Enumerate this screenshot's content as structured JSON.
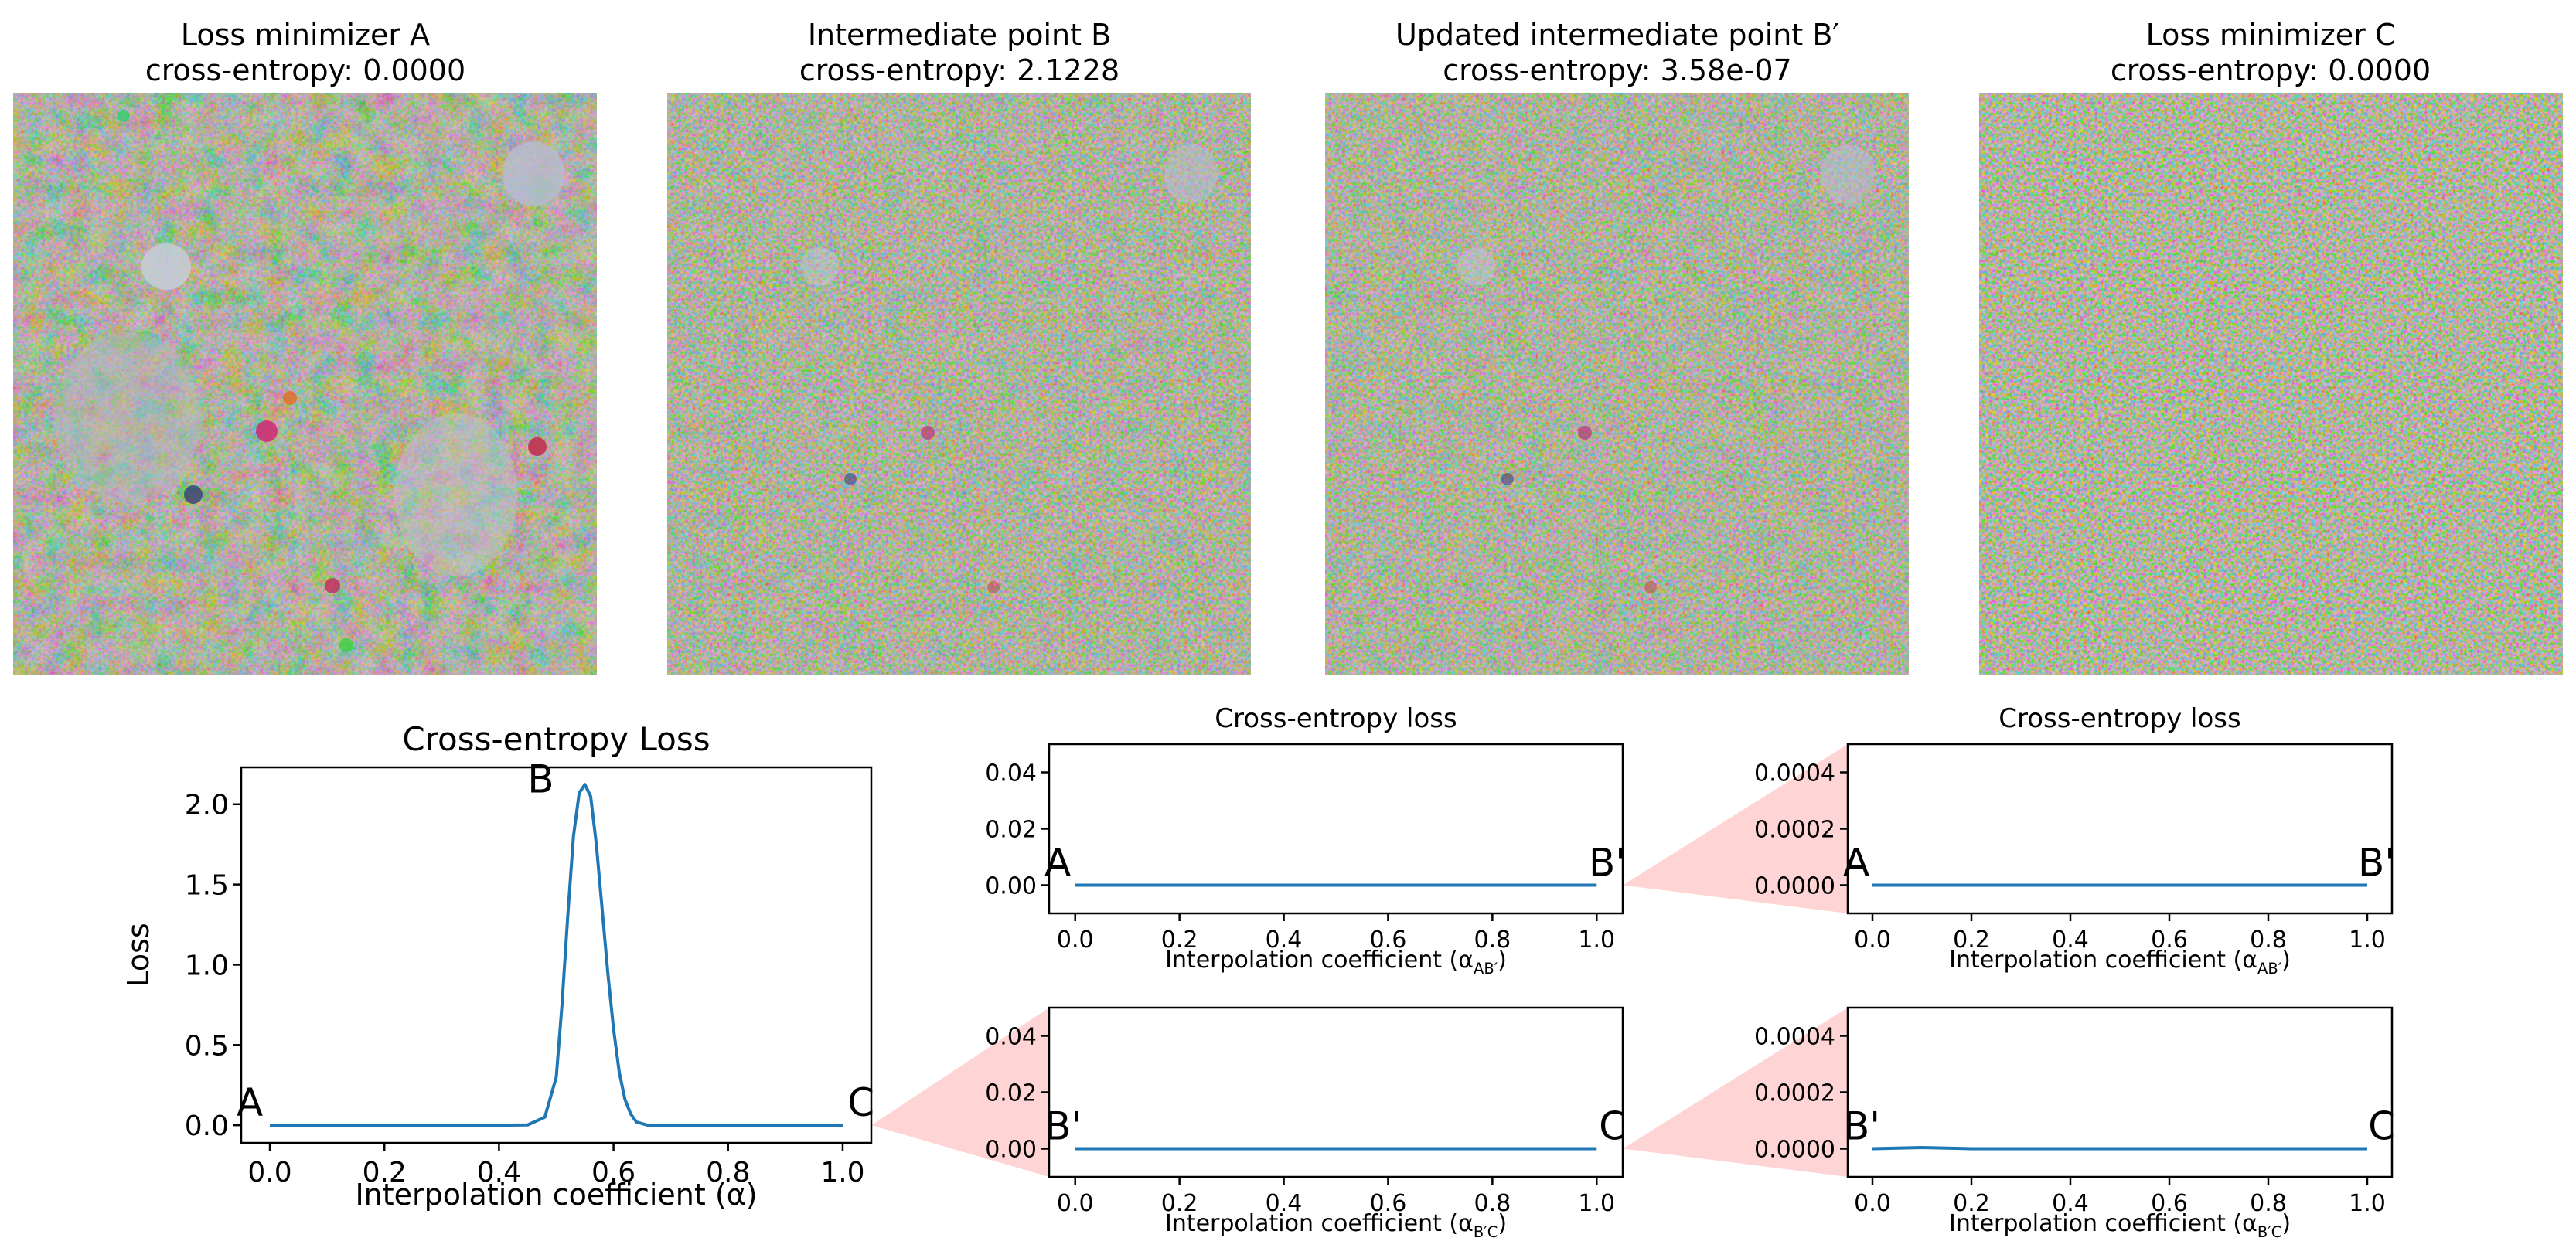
{
  "images": [
    {
      "title_line1": "Loss minimizer A",
      "title_line2": "cross-entropy: 0.0000"
    },
    {
      "title_line1": "Intermediate point B",
      "title_line2": "cross-entropy: 2.1228"
    },
    {
      "title_line1": "Updated intermediate point B′",
      "title_line2": "cross-entropy: 3.58e-07"
    },
    {
      "title_line1": "Loss minimizer C",
      "title_line2": "cross-entropy: 0.0000"
    }
  ],
  "colors": {
    "line": "#1f77b4",
    "zoom": "#ffcccc",
    "axis": "#000000"
  },
  "chart_data": [
    {
      "type": "line",
      "title": "Cross-entropy Loss",
      "xlabel": "Interpolation coefficient (α)",
      "ylabel": "Loss",
      "xlim": [
        -0.05,
        1.05
      ],
      "ylim": [
        -0.11,
        2.23
      ],
      "xticks": [
        0.0,
        0.2,
        0.4,
        0.6,
        0.8,
        1.0
      ],
      "xtick_labels": [
        "0.0",
        "0.2",
        "0.4",
        "0.6",
        "0.8",
        "1.0"
      ],
      "yticks": [
        0.0,
        0.5,
        1.0,
        1.5,
        2.0
      ],
      "ytick_labels": [
        "0.0",
        "0.5",
        "1.0",
        "1.5",
        "2.0"
      ],
      "series": [
        {
          "x": [
            0.0,
            0.1,
            0.2,
            0.3,
            0.4,
            0.45,
            0.48,
            0.5,
            0.51,
            0.52,
            0.53,
            0.54,
            0.55,
            0.56,
            0.57,
            0.58,
            0.59,
            0.6,
            0.61,
            0.62,
            0.63,
            0.64,
            0.66,
            0.7,
            0.8,
            0.9,
            1.0
          ],
          "y": [
            0.0,
            0.0,
            0.0,
            0.0,
            0.0,
            0.002,
            0.05,
            0.3,
            0.75,
            1.3,
            1.8,
            2.07,
            2.1228,
            2.05,
            1.75,
            1.35,
            0.95,
            0.6,
            0.33,
            0.16,
            0.07,
            0.02,
            0.0,
            0.0,
            0.0,
            0.0,
            0.0
          ]
        }
      ],
      "point_labels": [
        {
          "text": "A",
          "x": 0.0,
          "y": 0.0
        },
        {
          "text": "B",
          "x": 0.55,
          "y": 2.1228
        },
        {
          "text": "C",
          "x": 1.0,
          "y": 0.0
        }
      ]
    },
    {
      "type": "line",
      "title": "Cross-entropy loss",
      "xlabel": "Interpolation coefficient (α",
      "xlabel_sub": "AB′",
      "xlabel_end": ")",
      "ylabel": "",
      "xlim": [
        -0.05,
        1.05
      ],
      "ylim": [
        -0.01,
        0.05
      ],
      "xticks": [
        0.0,
        0.2,
        0.4,
        0.6,
        0.8,
        1.0
      ],
      "xtick_labels": [
        "0.0",
        "0.2",
        "0.4",
        "0.6",
        "0.8",
        "1.0"
      ],
      "yticks": [
        0.0,
        0.02,
        0.04
      ],
      "ytick_labels": [
        "0.00",
        "0.02",
        "0.04"
      ],
      "series": [
        {
          "x": [
            0.0,
            0.25,
            0.5,
            0.75,
            1.0
          ],
          "y": [
            0.0,
            0.0,
            0.0,
            0.0,
            0.0
          ]
        }
      ],
      "point_labels": [
        {
          "text": "A",
          "x": 0.0,
          "y": 0.0
        },
        {
          "text": "B'",
          "x": 1.0,
          "y": 0.0
        }
      ]
    },
    {
      "type": "line",
      "title": "Cross-entropy loss",
      "xlabel": "Interpolation coefficient (α",
      "xlabel_sub": "AB′",
      "xlabel_end": ")",
      "ylabel": "",
      "xlim": [
        -0.05,
        1.05
      ],
      "ylim": [
        -0.0001,
        0.0005
      ],
      "xticks": [
        0.0,
        0.2,
        0.4,
        0.6,
        0.8,
        1.0
      ],
      "xtick_labels": [
        "0.0",
        "0.2",
        "0.4",
        "0.6",
        "0.8",
        "1.0"
      ],
      "yticks": [
        0.0,
        0.0002,
        0.0004
      ],
      "ytick_labels": [
        "0.0000",
        "0.0002",
        "0.0004"
      ],
      "series": [
        {
          "x": [
            0.0,
            0.25,
            0.5,
            0.75,
            1.0
          ],
          "y": [
            0.0,
            0.0,
            0.0,
            0.0,
            0.0
          ]
        }
      ],
      "point_labels": [
        {
          "text": "A",
          "x": 0.0,
          "y": 0.0
        },
        {
          "text": "B'",
          "x": 1.0,
          "y": 0.0
        }
      ]
    },
    {
      "type": "line",
      "title": "",
      "xlabel": "Interpolation coefficient (α",
      "xlabel_sub": "B′C",
      "xlabel_end": ")",
      "ylabel": "",
      "xlim": [
        -0.05,
        1.05
      ],
      "ylim": [
        -0.01,
        0.05
      ],
      "xticks": [
        0.0,
        0.2,
        0.4,
        0.6,
        0.8,
        1.0
      ],
      "xtick_labels": [
        "0.0",
        "0.2",
        "0.4",
        "0.6",
        "0.8",
        "1.0"
      ],
      "yticks": [
        0.0,
        0.02,
        0.04
      ],
      "ytick_labels": [
        "0.00",
        "0.02",
        "0.04"
      ],
      "series": [
        {
          "x": [
            0.0,
            0.25,
            0.5,
            0.75,
            1.0
          ],
          "y": [
            0.0,
            0.0,
            0.0,
            0.0,
            0.0
          ]
        }
      ],
      "point_labels": [
        {
          "text": "B'",
          "x": 0.0,
          "y": 0.0
        },
        {
          "text": "C",
          "x": 1.0,
          "y": 0.0
        }
      ]
    },
    {
      "type": "line",
      "title": "",
      "xlabel": "Interpolation coefficient (α",
      "xlabel_sub": "B′C",
      "xlabel_end": ")",
      "ylabel": "",
      "xlim": [
        -0.05,
        1.05
      ],
      "ylim": [
        -0.0001,
        0.0005
      ],
      "xticks": [
        0.0,
        0.2,
        0.4,
        0.6,
        0.8,
        1.0
      ],
      "xtick_labels": [
        "0.0",
        "0.2",
        "0.4",
        "0.6",
        "0.8",
        "1.0"
      ],
      "yticks": [
        0.0,
        0.0002,
        0.0004
      ],
      "ytick_labels": [
        "0.0000",
        "0.0002",
        "0.0004"
      ],
      "series": [
        {
          "x": [
            0.0,
            0.05,
            0.1,
            0.15,
            0.2,
            0.5,
            1.0
          ],
          "y": [
            0.0,
            2e-06,
            4e-06,
            2e-06,
            0.0,
            0.0,
            0.0
          ]
        }
      ],
      "point_labels": [
        {
          "text": "B'",
          "x": 0.0,
          "y": 0.0
        },
        {
          "text": "C",
          "x": 1.0,
          "y": 0.0
        }
      ]
    }
  ]
}
